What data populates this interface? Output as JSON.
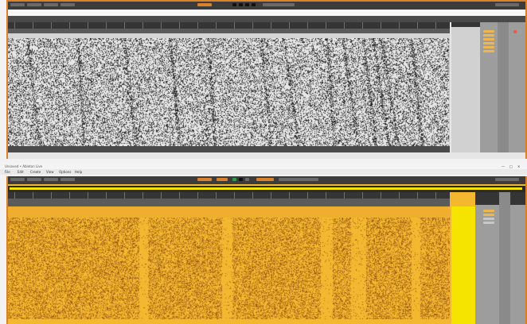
{
  "top_window": {
    "title": "",
    "menu_text": "",
    "panel_header": "",
    "side_label": "",
    "colors": {
      "frame": "#d9822b",
      "titlebar": "#3c3c3c",
      "ruler": "#353535",
      "canvas_bg": "#e6e6e6",
      "noise_dark": "#2a2a2a",
      "side_panel": "#9d9d9d"
    }
  },
  "taskbar": {
    "caption": "Unsaved • Ableton Live",
    "menu_items": [
      "File",
      "Edit",
      "Create",
      "View",
      "Options",
      "Help"
    ],
    "window_controls": [
      "—",
      "□",
      "✕"
    ]
  },
  "bottom_window": {
    "panel_header": "",
    "side_label": "",
    "colors": {
      "frame": "#d9822b",
      "accent": "#f5e400",
      "canvas_bg": "#f3b830",
      "noise_dark": "#a86814",
      "column_light": "#f7c63c",
      "side_panel": "#9d9d9d"
    }
  },
  "icons": [
    "record-icon",
    "play-icon",
    "stop-icon",
    "loop-icon",
    "chevron-icon"
  ]
}
